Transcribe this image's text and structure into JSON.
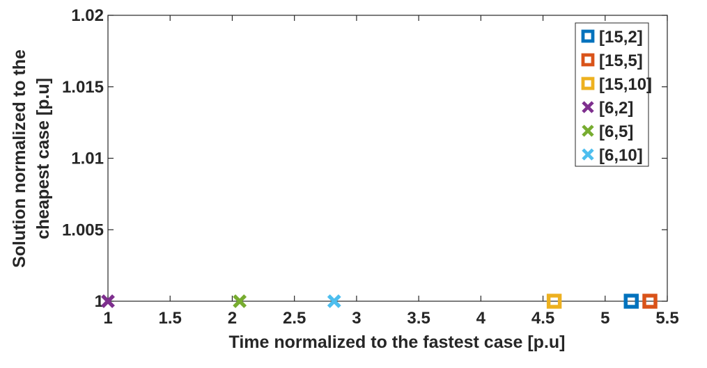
{
  "chart_data": {
    "type": "scatter",
    "title": "",
    "xlabel": "Time normalized to the fastest case [p.u]",
    "ylabel_lines": [
      "Solution normalized to the",
      "cheapest  case [p.u]"
    ],
    "xlim": [
      1,
      5.5
    ],
    "ylim": [
      1,
      1.02
    ],
    "xticks": [
      1,
      1.5,
      2,
      2.5,
      3,
      3.5,
      4,
      4.5,
      5,
      5.5
    ],
    "xtick_labels": [
      "1",
      "1.5",
      "2",
      "2.5",
      "3",
      "3.5",
      "4",
      "4.5",
      "5",
      "5.5"
    ],
    "yticks": [
      1,
      1.005,
      1.01,
      1.015,
      1.02
    ],
    "ytick_labels": [
      "1",
      "1.005",
      "1.01",
      "1.015",
      "1.02"
    ],
    "grid": false,
    "legend_position": "top-right",
    "series": [
      {
        "name": "[15,2]",
        "marker": "square",
        "color": "#0072BD",
        "x": [
          5.21
        ],
        "y": [
          1
        ]
      },
      {
        "name": "[15,5]",
        "marker": "square",
        "color": "#D95319",
        "x": [
          5.36
        ],
        "y": [
          1
        ]
      },
      {
        "name": "[15,10]",
        "marker": "square",
        "color": "#EDB120",
        "x": [
          4.59
        ],
        "y": [
          1
        ]
      },
      {
        "name": "[6,2]",
        "marker": "x",
        "color": "#7E2F8E",
        "x": [
          1.0
        ],
        "y": [
          1
        ]
      },
      {
        "name": "[6,5]",
        "marker": "x",
        "color": "#77AC30",
        "x": [
          2.06
        ],
        "y": [
          1
        ]
      },
      {
        "name": "[6,10]",
        "marker": "x",
        "color": "#4DBEEE",
        "x": [
          2.82
        ],
        "y": [
          1
        ]
      }
    ]
  }
}
